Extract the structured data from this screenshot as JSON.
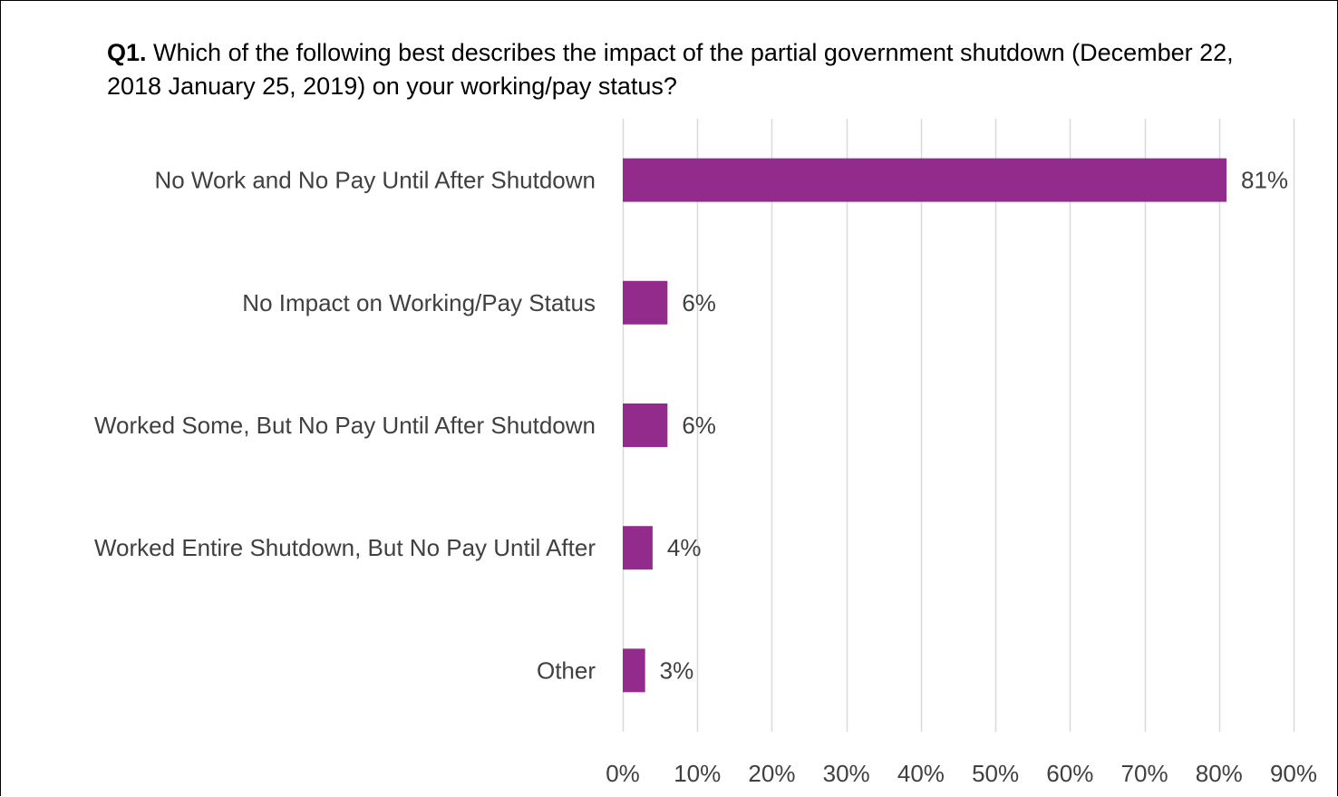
{
  "chart_data": {
    "type": "bar",
    "orientation": "horizontal",
    "title_prefix": "Q1.",
    "title": "Which of the following best describes the impact of the partial government shutdown (December 22, 2018 January 25, 2019) on your working/pay status?",
    "categories": [
      "No Work and No Pay Until After Shutdown",
      "No Impact on Working/Pay Status",
      "Worked Some, But No Pay Until After Shutdown",
      "Worked Entire Shutdown, But No Pay Until After",
      "Other"
    ],
    "values": [
      81,
      6,
      6,
      4,
      3
    ],
    "value_labels": [
      "81%",
      "6%",
      "6%",
      "4%",
      "3%"
    ],
    "xlim": [
      0,
      90
    ],
    "x_ticks": [
      0,
      10,
      20,
      30,
      40,
      50,
      60,
      70,
      80,
      90
    ],
    "x_tick_labels": [
      "0%",
      "10%",
      "20%",
      "30%",
      "40%",
      "50%",
      "60%",
      "70%",
      "80%",
      "90%"
    ],
    "grid": "vertical",
    "legend": "none",
    "bar_color": "#922B8C",
    "grid_color": "#D9D9D9"
  }
}
